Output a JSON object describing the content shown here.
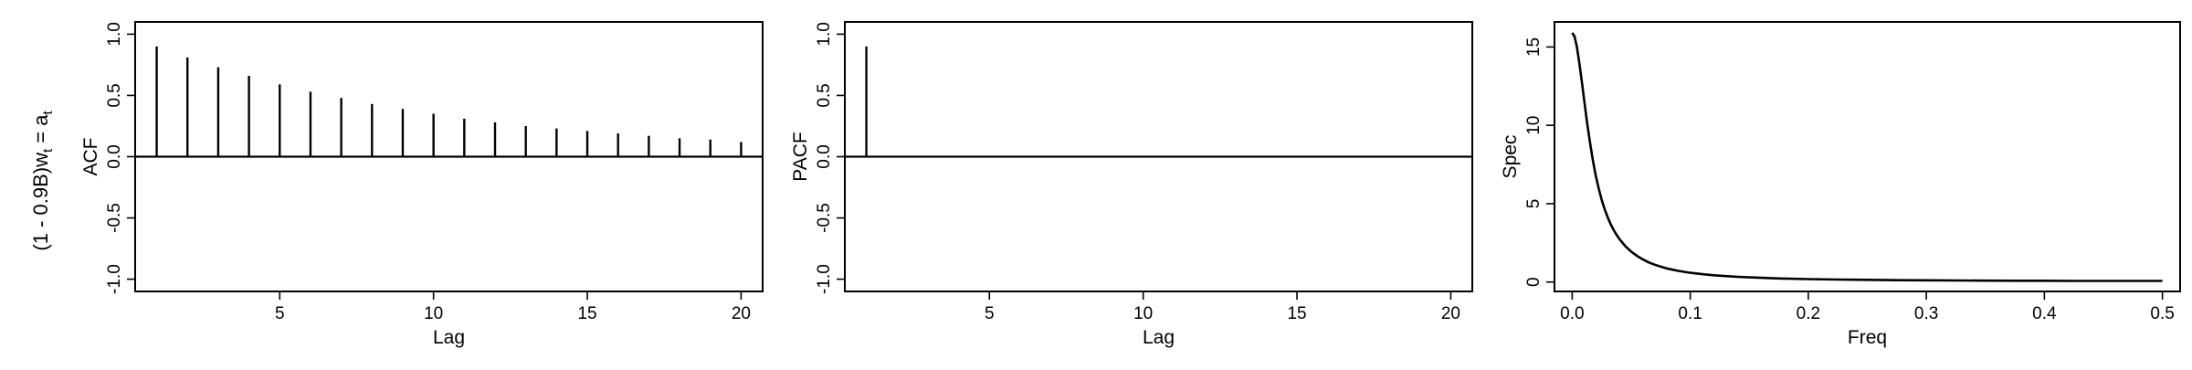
{
  "row_label": {
    "text": "(1 - 0.9B)w",
    "sub": "t",
    "eq": " = a",
    "sub2": "t"
  },
  "chart_data": [
    {
      "type": "bar",
      "ylabel": "ACF",
      "xlabel": "Lag",
      "xlim": [
        0.3,
        20.7
      ],
      "ylim": [
        -1.1,
        1.1
      ],
      "xticks": [
        5,
        10,
        15,
        20
      ],
      "yticks": [
        -1.0,
        -0.5,
        0.0,
        0.5,
        1.0
      ],
      "ytick_labels": [
        "-1.0",
        "-0.5",
        "0.0",
        "0.5",
        "1.0"
      ],
      "x": [
        1,
        2,
        3,
        4,
        5,
        6,
        7,
        8,
        9,
        10,
        11,
        12,
        13,
        14,
        15,
        16,
        17,
        18,
        19,
        20
      ],
      "values": [
        0.9,
        0.81,
        0.73,
        0.66,
        0.59,
        0.53,
        0.48,
        0.43,
        0.39,
        0.35,
        0.31,
        0.28,
        0.25,
        0.23,
        0.21,
        0.19,
        0.17,
        0.15,
        0.14,
        0.12
      ],
      "zero_line": true
    },
    {
      "type": "bar",
      "ylabel": "PACF",
      "xlabel": "Lag",
      "xlim": [
        0.3,
        20.7
      ],
      "ylim": [
        -1.1,
        1.1
      ],
      "xticks": [
        5,
        10,
        15,
        20
      ],
      "yticks": [
        -1.0,
        -0.5,
        0.0,
        0.5,
        1.0
      ],
      "ytick_labels": [
        "-1.0",
        "-0.5",
        "0.0",
        "0.5",
        "1.0"
      ],
      "x": [
        1,
        2,
        3,
        4,
        5,
        6,
        7,
        8,
        9,
        10,
        11,
        12,
        13,
        14,
        15,
        16,
        17,
        18,
        19,
        20
      ],
      "values": [
        0.9,
        0,
        0,
        0,
        0,
        0,
        0,
        0,
        0,
        0,
        0,
        0,
        0,
        0,
        0,
        0,
        0,
        0,
        0,
        0
      ],
      "zero_line": true
    },
    {
      "type": "line",
      "ylabel": "Spec",
      "xlabel": "Freq",
      "xlim": [
        -0.015,
        0.515
      ],
      "ylim": [
        -0.6,
        16.6
      ],
      "xticks": [
        0.0,
        0.1,
        0.2,
        0.3,
        0.4,
        0.5
      ],
      "xtick_labels": [
        "0.0",
        "0.1",
        "0.2",
        "0.3",
        "0.4",
        "0.5"
      ],
      "yticks": [
        0,
        5,
        10,
        15
      ],
      "ytick_labels": [
        "0",
        "5",
        "10",
        "15"
      ],
      "x": [
        0,
        0.002,
        0.004,
        0.006,
        0.008,
        0.01,
        0.0125,
        0.015,
        0.0175,
        0.02,
        0.0225,
        0.025,
        0.0275,
        0.03,
        0.0325,
        0.035,
        0.0375,
        0.04,
        0.045,
        0.05,
        0.055,
        0.06,
        0.065,
        0.07,
        0.075,
        0.08,
        0.09,
        0.1,
        0.11,
        0.12,
        0.13,
        0.14,
        0.15,
        0.175,
        0.2,
        0.225,
        0.25,
        0.275,
        0.3,
        0.325,
        0.35,
        0.375,
        0.4,
        0.425,
        0.45,
        0.475,
        0.5
      ],
      "values": [
        15.9,
        15.67,
        14.98,
        14.02,
        12.89,
        11.7,
        10.25,
        8.93,
        7.77,
        6.78,
        5.95,
        5.24,
        4.65,
        4.14,
        3.71,
        3.34,
        3.02,
        2.74,
        2.29,
        1.94,
        1.66,
        1.44,
        1.25,
        1.1,
        0.98,
        0.87,
        0.71,
        0.59,
        0.5,
        0.43,
        0.38,
        0.33,
        0.3,
        0.23,
        0.19,
        0.16,
        0.14,
        0.12,
        0.11,
        0.1,
        0.09,
        0.08,
        0.08,
        0.07,
        0.07,
        0.07,
        0.07
      ],
      "zero_line": false
    }
  ]
}
